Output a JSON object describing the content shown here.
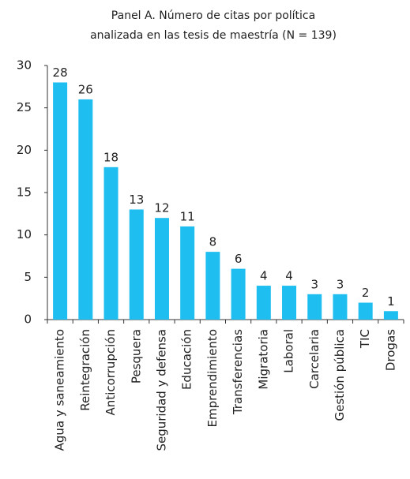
{
  "chart_data": {
    "type": "bar",
    "title": [
      "Panel A. Número de citas por política",
      "analizada en las tesis de maestría (N = 139)"
    ],
    "categories": [
      "Agua y saneamiento",
      "Reintegración",
      "Anticorrupción",
      "Pesquera",
      "Seguridad y defensa",
      "Educación",
      "Emprendimiento",
      "Transferencias",
      "Migratoria",
      "Laboral",
      "Carcelaria",
      "Gestión pública",
      "TIC",
      "Drogas"
    ],
    "values": [
      28,
      26,
      18,
      13,
      12,
      11,
      8,
      6,
      4,
      4,
      3,
      3,
      2,
      1
    ],
    "color": "#1ebef0",
    "ylim": [
      0,
      30
    ],
    "yticks": [
      0,
      5,
      10,
      15,
      20,
      25,
      30
    ],
    "grid": false
  }
}
